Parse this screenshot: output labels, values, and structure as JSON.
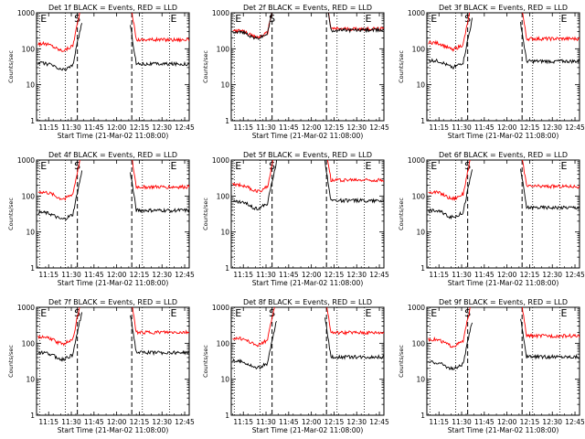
{
  "chart_data": {
    "type": "line",
    "layout": {
      "rows": 3,
      "cols": 3
    },
    "xaxis": {
      "label": "Start Time (21-Mar-02 11:08:00)",
      "range_minutes": [
        -1,
        100
      ],
      "tick_minutes": [
        7,
        22,
        37,
        52,
        67,
        82,
        97
      ],
      "tick_labels": [
        "11:15",
        "11:30",
        "11:45",
        "12:00",
        "12:15",
        "12:30",
        "12:45"
      ]
    },
    "yaxis": {
      "label": "Counts/sec",
      "scale": "log",
      "range": [
        1,
        1000
      ],
      "tick_values": [
        1,
        10,
        100,
        1000
      ],
      "tick_labels": [
        "1",
        "10",
        "100",
        "1000"
      ]
    },
    "series_colors": {
      "events": "#000000",
      "lld": "#ff0000"
    },
    "markers": {
      "dotted": [
        {
          "minute": 1,
          "label": "E"
        },
        {
          "minute": 18,
          "label": ""
        },
        {
          "minute": 69,
          "label": ""
        },
        {
          "minute": 87,
          "label": "E"
        }
      ],
      "dashed": [
        {
          "minute": 26,
          "label": "S"
        },
        {
          "minute": 62,
          "label": ""
        }
      ]
    },
    "gap_minutes": [
      29,
      61
    ],
    "panels": [
      {
        "title": "Det 1f BLACK = Events, RED = LLD",
        "pre_events": 40,
        "pre_lld": 140,
        "post_events": 38,
        "post_lld": 180
      },
      {
        "title": "Det 2f BLACK = Events, RED = LLD",
        "pre_events": 300,
        "pre_lld": 320,
        "post_events": 330,
        "post_lld": 360
      },
      {
        "title": "Det 3f BLACK = Events, RED = LLD",
        "pre_events": 48,
        "pre_lld": 150,
        "post_events": 45,
        "post_lld": 190
      },
      {
        "title": "Det 4f BLACK = Events, RED = LLD",
        "pre_events": 35,
        "pre_lld": 130,
        "post_events": 40,
        "post_lld": 180
      },
      {
        "title": "Det 5f BLACK = Events, RED = LLD",
        "pre_events": 70,
        "pre_lld": 210,
        "post_events": 75,
        "post_lld": 280
      },
      {
        "title": "Det 6f BLACK = Events, RED = LLD",
        "pre_events": 40,
        "pre_lld": 130,
        "post_events": 48,
        "post_lld": 185
      },
      {
        "title": "Det 7f BLACK = Events, RED = LLD",
        "pre_events": 55,
        "pre_lld": 150,
        "post_events": 55,
        "post_lld": 200
      },
      {
        "title": "Det 8f BLACK = Events, RED = LLD",
        "pre_events": 32,
        "pre_lld": 140,
        "post_events": 42,
        "post_lld": 200
      },
      {
        "title": "Det 9f BLACK = Events, RED = LLD",
        "pre_events": 30,
        "pre_lld": 130,
        "post_events": 42,
        "post_lld": 160
      }
    ]
  }
}
